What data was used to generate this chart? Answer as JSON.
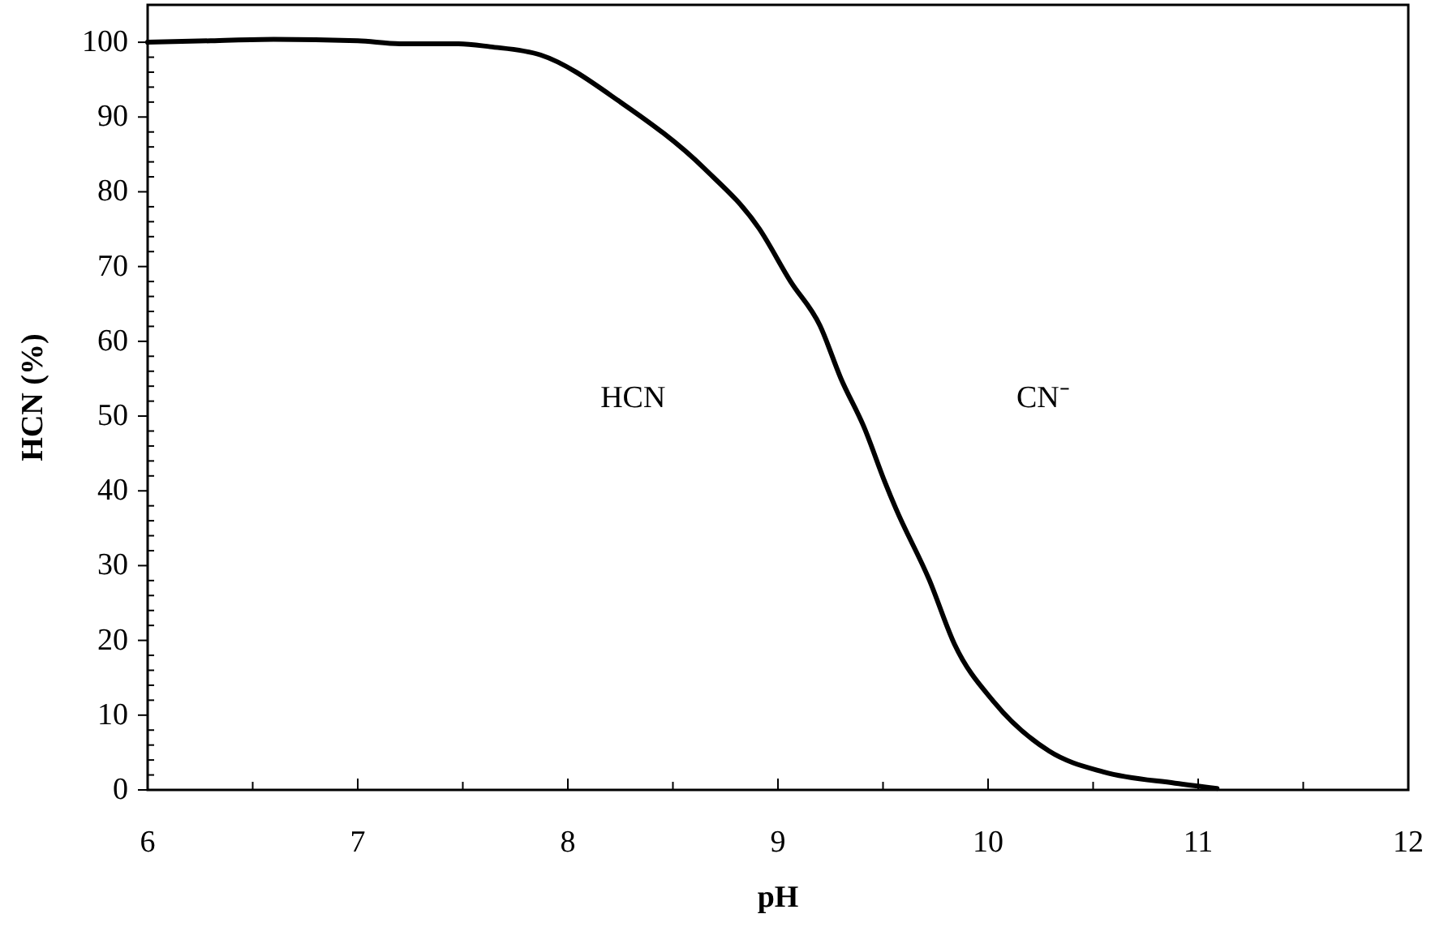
{
  "chart_data": {
    "type": "line",
    "xlabel": "pH",
    "ylabel": "HCN (%)",
    "series": [
      {
        "color": "#000000",
        "x": [
          6,
          6.3,
          6.6,
          7,
          7.2,
          7.48,
          7.63,
          7.87,
          8.26,
          8.65,
          8.91,
          9.06,
          9.2,
          9.3,
          9.41,
          9.51,
          9.56,
          9.72,
          9.84,
          10.03,
          10.29,
          10.55,
          10.89,
          11.09
        ],
        "values": [
          100,
          100.2,
          100.4,
          100.2,
          99.8,
          99.8,
          99.4,
          98.3,
          91.8,
          83.1,
          75.1,
          68,
          62.1,
          55,
          48.5,
          41.1,
          37.7,
          28.1,
          19.5,
          11.7,
          5.2,
          2.4,
          0.9,
          0.2
        ]
      }
    ],
    "xlim": [
      6,
      12
    ],
    "xticks": [
      6,
      7,
      8,
      9,
      10,
      11,
      12
    ],
    "ylim": [
      0,
      105
    ],
    "yticks": [
      0,
      10,
      20,
      30,
      40,
      50,
      60,
      70,
      80,
      90,
      100
    ],
    "annotations": [
      "HCN",
      "CN⁻"
    ],
    "grid": false,
    "marker": "none",
    "line_style": "solid"
  }
}
